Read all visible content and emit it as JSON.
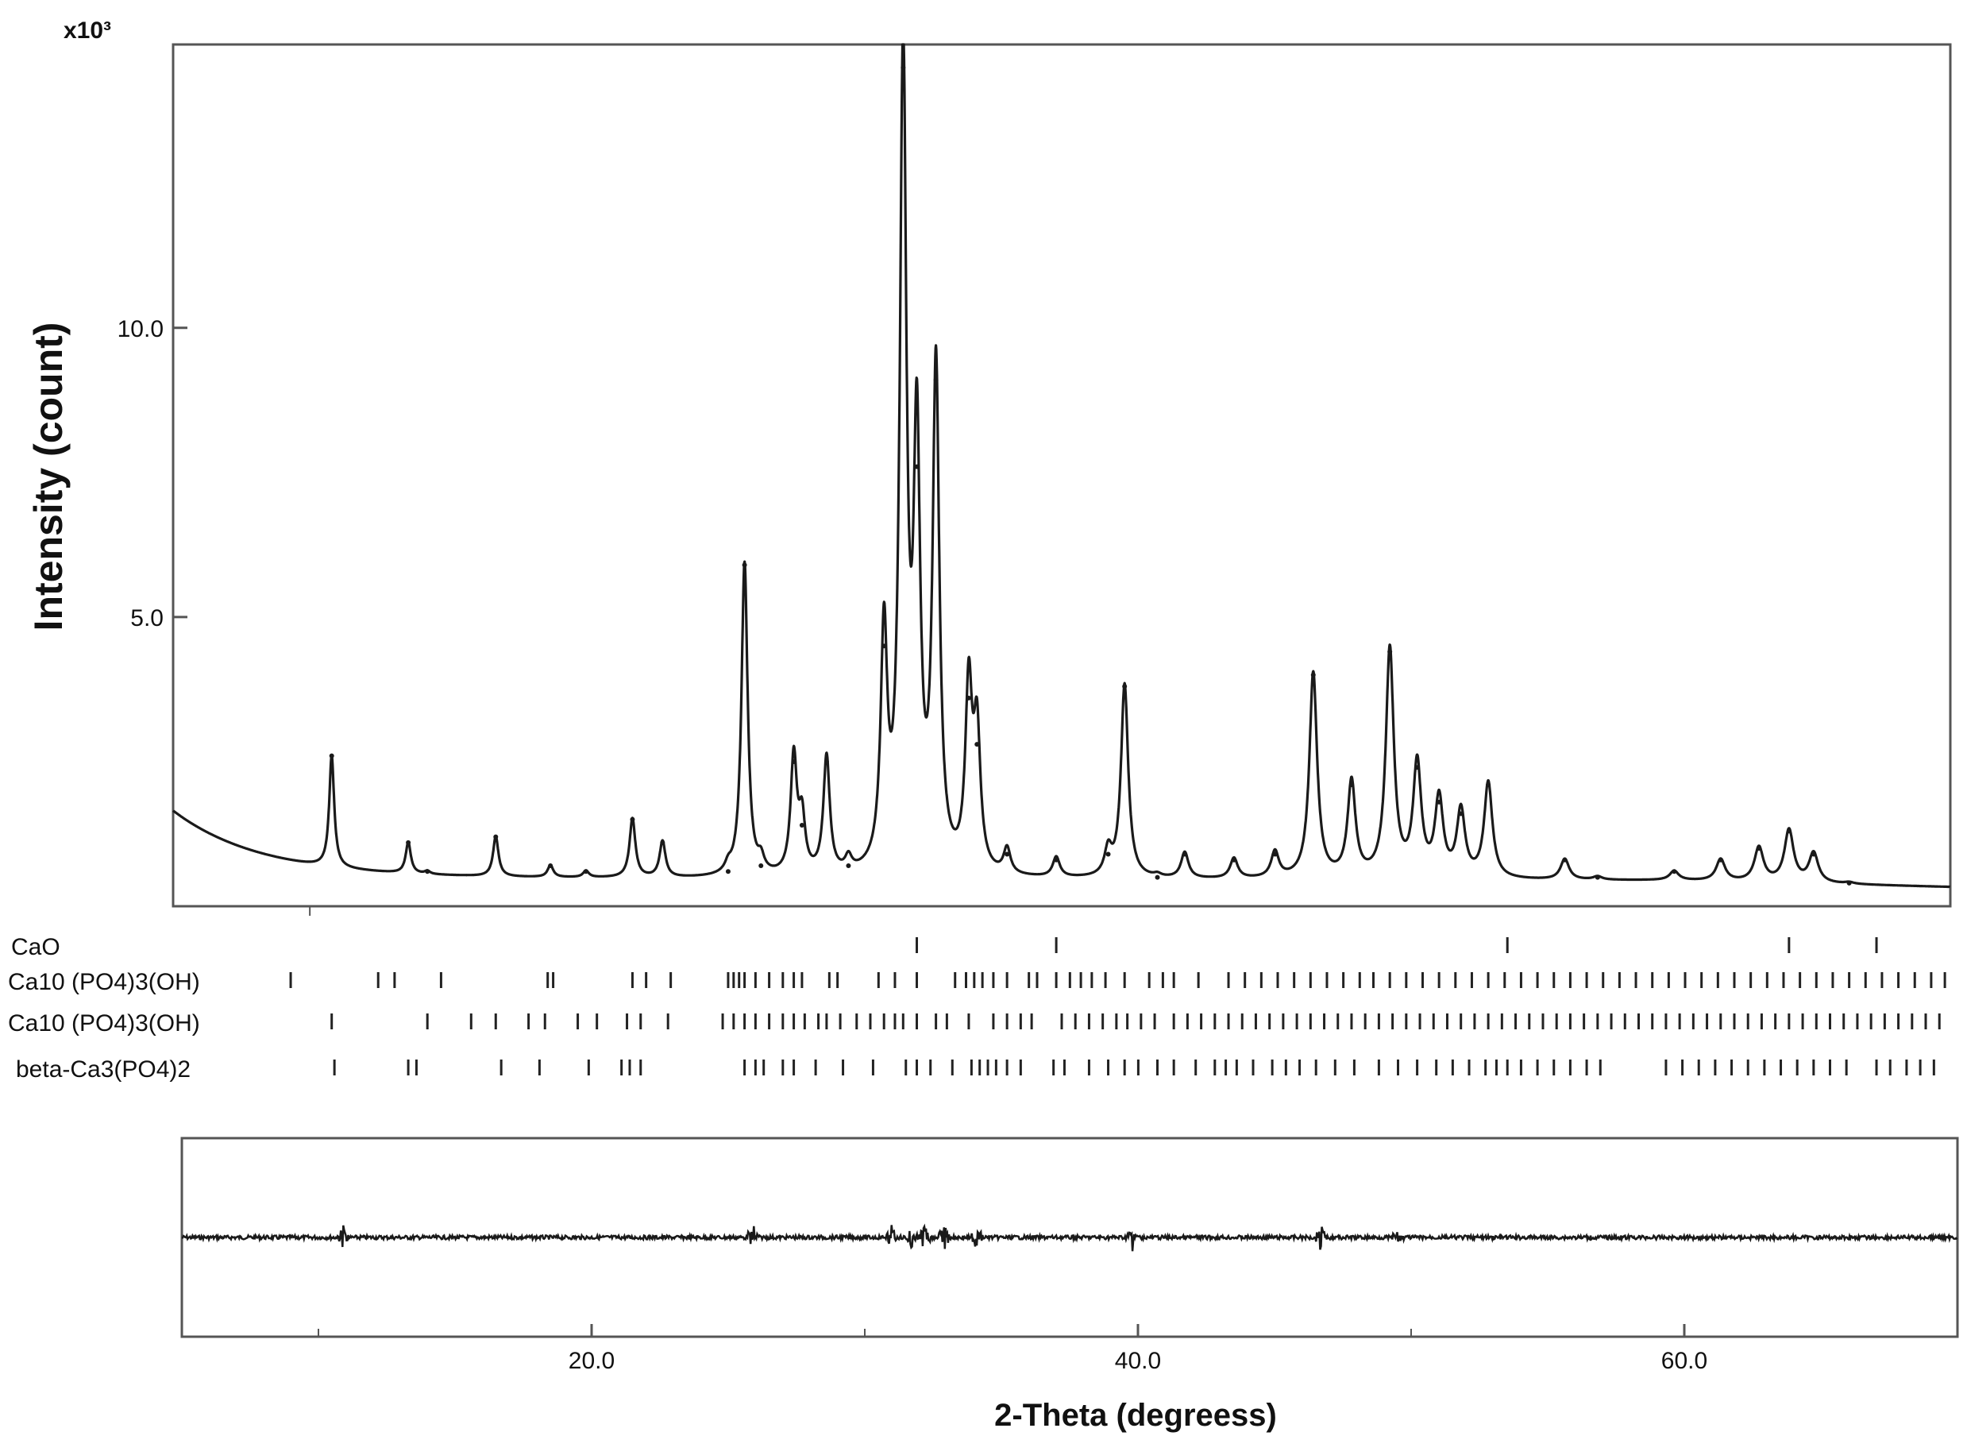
{
  "chart_data": {
    "type": "line",
    "title": "",
    "xlabel": "2-Theta (degreess)",
    "ylabel": "Intensity (count)",
    "y_multiplier": "x10³",
    "xlim": [
      5.0,
      70.0
    ],
    "ylim": [
      0,
      14.9
    ],
    "x_ticks": [
      20.0,
      40.0,
      60.0
    ],
    "x_tick_labels": [
      "20.0",
      "40.0",
      "60.0"
    ],
    "y_ticks": [
      5.0,
      10.0
    ],
    "y_tick_labels": [
      "5.0",
      "10.0"
    ],
    "grid": false,
    "series": [
      {
        "values_unit": "x10³ count",
        "peaks": [
          {
            "x": 10.8,
            "y": 2.6
          },
          {
            "x": 13.6,
            "y": 1.1
          },
          {
            "x": 14.3,
            "y": 0.6
          },
          {
            "x": 16.8,
            "y": 1.2
          },
          {
            "x": 18.8,
            "y": 0.7
          },
          {
            "x": 20.1,
            "y": 0.6
          },
          {
            "x": 21.8,
            "y": 1.5
          },
          {
            "x": 22.9,
            "y": 1.1
          },
          {
            "x": 25.3,
            "y": 0.6
          },
          {
            "x": 25.9,
            "y": 5.9
          },
          {
            "x": 26.5,
            "y": 0.7
          },
          {
            "x": 27.7,
            "y": 2.5
          },
          {
            "x": 28.0,
            "y": 1.4
          },
          {
            "x": 28.9,
            "y": 2.5
          },
          {
            "x": 29.7,
            "y": 0.7
          },
          {
            "x": 31.0,
            "y": 4.5
          },
          {
            "x": 31.7,
            "y": 14.5
          },
          {
            "x": 32.2,
            "y": 7.6
          },
          {
            "x": 32.9,
            "y": 9.1
          },
          {
            "x": 34.1,
            "y": 3.6
          },
          {
            "x": 34.4,
            "y": 2.8
          },
          {
            "x": 35.5,
            "y": 0.9
          },
          {
            "x": 37.3,
            "y": 0.8
          },
          {
            "x": 39.2,
            "y": 0.9
          },
          {
            "x": 39.8,
            "y": 3.8
          },
          {
            "x": 41.0,
            "y": 0.5
          },
          {
            "x": 42.0,
            "y": 0.9
          },
          {
            "x": 43.8,
            "y": 0.8
          },
          {
            "x": 45.3,
            "y": 0.9
          },
          {
            "x": 46.7,
            "y": 4.0
          },
          {
            "x": 48.1,
            "y": 2.1
          },
          {
            "x": 49.5,
            "y": 4.4
          },
          {
            "x": 50.5,
            "y": 2.4
          },
          {
            "x": 51.3,
            "y": 1.8
          },
          {
            "x": 52.1,
            "y": 1.6
          },
          {
            "x": 53.1,
            "y": 2.1
          },
          {
            "x": 55.9,
            "y": 0.8
          },
          {
            "x": 57.1,
            "y": 0.5
          },
          {
            "x": 59.9,
            "y": 0.6
          },
          {
            "x": 61.6,
            "y": 0.8
          },
          {
            "x": 63.0,
            "y": 1.0
          },
          {
            "x": 64.1,
            "y": 1.3
          },
          {
            "x": 65.0,
            "y": 0.9
          },
          {
            "x": 66.3,
            "y": 0.4
          }
        ]
      }
    ],
    "phases": [
      {
        "label": "CaO",
        "positions": [
          32.2,
          37.3,
          53.8,
          64.1,
          67.3
        ]
      },
      {
        "label": "Ca10 (PO4)3(OH)",
        "positions": [
          9.3,
          12.5,
          13.1,
          14.8,
          18.7,
          18.9,
          21.8,
          22.3,
          23.2,
          25.3,
          25.5,
          25.7,
          25.9,
          26.3,
          26.8,
          27.3,
          27.7,
          28.0,
          29.0,
          29.3,
          30.8,
          31.4,
          32.2,
          33.6,
          34.0,
          34.3,
          34.6,
          35.0,
          35.5,
          36.3,
          36.6,
          37.3,
          37.8,
          38.2,
          38.6,
          39.1,
          39.8,
          40.7,
          41.2,
          41.6,
          42.5,
          43.6,
          44.2,
          44.8,
          45.4,
          46.0,
          46.6,
          47.2,
          47.8,
          48.4,
          48.9,
          49.5,
          50.1,
          50.7,
          51.3,
          51.9,
          52.5,
          53.1,
          53.7,
          54.3,
          54.9,
          55.5,
          56.1,
          56.7,
          57.3,
          57.9,
          58.5,
          59.1,
          59.7,
          60.3,
          60.9,
          61.5,
          62.1,
          62.7,
          63.3,
          63.9,
          64.5,
          65.1,
          65.7,
          66.3,
          66.9,
          67.5,
          68.1,
          68.7,
          69.3,
          69.8
        ]
      },
      {
        "label": "Ca10 (PO4)3(OH)",
        "positions": [
          10.8,
          14.3,
          15.9,
          16.8,
          18.0,
          18.6,
          19.8,
          20.5,
          21.6,
          22.1,
          23.1,
          25.1,
          25.5,
          25.9,
          26.3,
          26.8,
          27.3,
          27.7,
          28.1,
          28.6,
          28.9,
          29.4,
          30.0,
          30.5,
          31.0,
          31.4,
          31.7,
          32.2,
          32.9,
          33.3,
          34.1,
          35.0,
          35.5,
          36.0,
          36.4,
          37.5,
          38.0,
          38.5,
          39.0,
          39.5,
          39.9,
          40.4,
          40.9,
          41.6,
          42.1,
          42.6,
          43.1,
          43.6,
          44.1,
          44.6,
          45.1,
          45.6,
          46.1,
          46.6,
          47.1,
          47.6,
          48.1,
          48.6,
          49.1,
          49.6,
          50.1,
          50.6,
          51.1,
          51.6,
          52.1,
          52.6,
          53.1,
          53.6,
          54.1,
          54.6,
          55.1,
          55.6,
          56.1,
          56.6,
          57.1,
          57.6,
          58.1,
          58.6,
          59.1,
          59.6,
          60.1,
          60.6,
          61.1,
          61.6,
          62.1,
          62.6,
          63.1,
          63.6,
          64.1,
          64.6,
          65.1,
          65.6,
          66.1,
          66.6,
          67.1,
          67.6,
          68.1,
          68.6,
          69.1,
          69.6
        ]
      },
      {
        "label": "beta-Ca3(PO4)2",
        "positions": [
          10.9,
          13.6,
          13.9,
          17.0,
          18.4,
          20.2,
          21.4,
          21.7,
          22.1,
          25.9,
          26.3,
          26.6,
          27.3,
          27.7,
          28.5,
          29.5,
          30.6,
          31.8,
          32.2,
          32.7,
          33.5,
          34.2,
          34.5,
          34.8,
          35.1,
          35.5,
          36.0,
          37.2,
          37.6,
          38.5,
          39.2,
          39.8,
          40.3,
          41.0,
          41.6,
          42.4,
          43.1,
          43.5,
          43.9,
          44.5,
          45.2,
          45.7,
          46.2,
          46.8,
          47.5,
          48.2,
          49.1,
          49.8,
          50.5,
          51.2,
          51.8,
          52.4,
          53.0,
          53.4,
          53.8,
          54.3,
          54.9,
          55.5,
          56.1,
          56.7,
          57.2,
          59.6,
          60.2,
          60.8,
          61.4,
          62.0,
          62.6,
          63.2,
          63.8,
          64.4,
          65.0,
          65.6,
          66.2,
          67.3,
          67.8,
          68.4,
          68.9,
          69.4
        ]
      }
    ],
    "residual": {
      "label": "",
      "spikes": [
        10.9,
        25.9,
        31.0,
        31.7,
        32.2,
        32.9,
        34.1,
        39.8,
        46.7,
        49.5
      ]
    }
  }
}
